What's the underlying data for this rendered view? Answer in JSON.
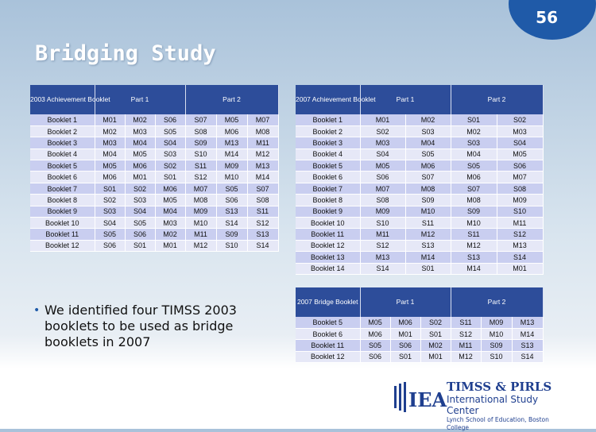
{
  "slide_number": "56",
  "title": "Bridging Study",
  "bullet": "We identified four TIMSS 2003 booklets to be used as bridge booklets in 2007",
  "logo": {
    "line1": "TIMSS & PIRLS",
    "line2": "International Study Center",
    "line3": "Lynch School of Education, Boston College",
    "mark": "IEA"
  },
  "tables": [
    {
      "header": [
        "2003 Achievement Booklet",
        "Part 1",
        "Part 2"
      ],
      "rows": [
        [
          "Booklet 1",
          "M01",
          "M02",
          "S06",
          "S07",
          "M05",
          "M07"
        ],
        [
          "Booklet 2",
          "M02",
          "M03",
          "S05",
          "S08",
          "M06",
          "M08"
        ],
        [
          "Booklet 3",
          "M03",
          "M04",
          "S04",
          "S09",
          "M13",
          "M11"
        ],
        [
          "Booklet 4",
          "M04",
          "M05",
          "S03",
          "S10",
          "M14",
          "M12"
        ],
        [
          "Booklet 5",
          "M05",
          "M06",
          "S02",
          "S11",
          "M09",
          "M13"
        ],
        [
          "Booklet 6",
          "M06",
          "M01",
          "S01",
          "S12",
          "M10",
          "M14"
        ],
        [
          "Booklet 7",
          "S01",
          "S02",
          "M06",
          "M07",
          "S05",
          "S07"
        ],
        [
          "Booklet 8",
          "S02",
          "S03",
          "M05",
          "M08",
          "S06",
          "S08"
        ],
        [
          "Booklet 9",
          "S03",
          "S04",
          "M04",
          "M09",
          "S13",
          "S11"
        ],
        [
          "Booklet 10",
          "S04",
          "S05",
          "M03",
          "M10",
          "S14",
          "S12"
        ],
        [
          "Booklet 11",
          "S05",
          "S06",
          "M02",
          "M11",
          "S09",
          "S13"
        ],
        [
          "Booklet 12",
          "S06",
          "S01",
          "M01",
          "M12",
          "S10",
          "S14"
        ]
      ]
    },
    {
      "header": [
        "2007 Achievement Booklet",
        "Part 1",
        "Part 2"
      ],
      "rows": [
        [
          "Booklet 1",
          "M01",
          "M02",
          "S01",
          "S02"
        ],
        [
          "Booklet 2",
          "S02",
          "S03",
          "M02",
          "M03"
        ],
        [
          "Booklet 3",
          "M03",
          "M04",
          "S03",
          "S04"
        ],
        [
          "Booklet 4",
          "S04",
          "S05",
          "M04",
          "M05"
        ],
        [
          "Booklet 5",
          "M05",
          "M06",
          "S05",
          "S06"
        ],
        [
          "Booklet 6",
          "S06",
          "S07",
          "M06",
          "M07"
        ],
        [
          "Booklet 7",
          "M07",
          "M08",
          "S07",
          "S08"
        ],
        [
          "Booklet 8",
          "S08",
          "S09",
          "M08",
          "M09"
        ],
        [
          "Booklet 9",
          "M09",
          "M10",
          "S09",
          "S10"
        ],
        [
          "Booklet 10",
          "S10",
          "S11",
          "M10",
          "M11"
        ],
        [
          "Booklet 11",
          "M11",
          "M12",
          "S11",
          "S12"
        ],
        [
          "Booklet 12",
          "S12",
          "S13",
          "M12",
          "M13"
        ],
        [
          "Booklet 13",
          "M13",
          "M14",
          "S13",
          "S14"
        ],
        [
          "Booklet 14",
          "S14",
          "S01",
          "M14",
          "M01"
        ]
      ]
    },
    {
      "header": [
        "2007 Bridge Booklet",
        "Part 1",
        "Part 2"
      ],
      "rows": [
        [
          "Booklet 5",
          "M05",
          "M06",
          "S02",
          "S11",
          "M09",
          "M13"
        ],
        [
          "Booklet 6",
          "M06",
          "M01",
          "S01",
          "S12",
          "M10",
          "M14"
        ],
        [
          "Booklet 11",
          "S05",
          "S06",
          "M02",
          "M11",
          "S09",
          "S13"
        ],
        [
          "Booklet 12",
          "S06",
          "S01",
          "M01",
          "M12",
          "S10",
          "S14"
        ]
      ]
    }
  ]
}
